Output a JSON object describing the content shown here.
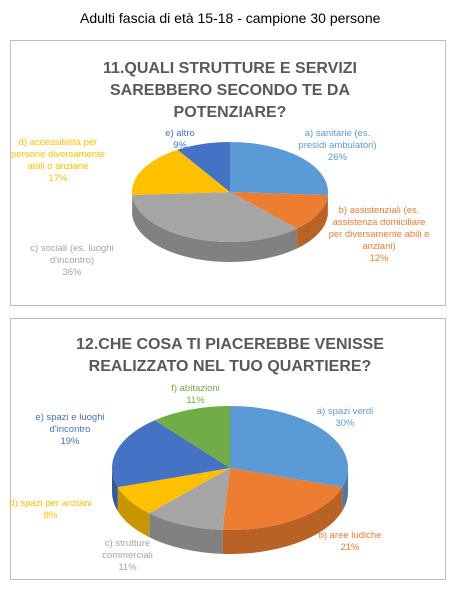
{
  "header": {
    "title": "Adulti fascia di età 15-18 - campione 30 persone"
  },
  "chart_data": [
    {
      "type": "pie",
      "title": "11.QUALI STRUTTURE E SERVIZI SAREBBERO SECONDO TE DA POTENZIARE?",
      "categories": [
        "a) sanitarie (es. presidi ambulatori)",
        "b) assistenziali (es. assistenza domiciliare per diversamente abili e anziani)",
        "c) sociali (es. luoghi d'incontro)",
        "d) accessibilità per persone diversamente abili o anziane",
        "e) altro"
      ],
      "values": [
        26,
        12,
        36,
        17,
        9
      ],
      "value_labels": [
        "26%",
        "12%",
        "36%",
        "17%",
        "9%"
      ],
      "colors": [
        "#5b9bd5",
        "#ed7d31",
        "#a5a5a5",
        "#ffc000",
        "#4472c4"
      ]
    },
    {
      "type": "pie",
      "title": "12.CHE COSA TI PIACEREBBE VENISSE REALIZZATO NEL TUO QUARTIERE?",
      "categories": [
        "a) spazi verdi",
        "b) aree ludiche",
        "c) strutture commerciali",
        "d) spazi per anziani",
        "e) spazi e luoghi d'incontro",
        "f) abitazioni"
      ],
      "values": [
        30,
        21,
        11,
        8,
        19,
        11
      ],
      "value_labels": [
        "30%",
        "21%",
        "11%",
        "8%",
        "19%",
        "11%"
      ],
      "colors": [
        "#5b9bd5",
        "#ed7d31",
        "#a5a5a5",
        "#ffc000",
        "#4472c4",
        "#70ad47"
      ]
    }
  ]
}
